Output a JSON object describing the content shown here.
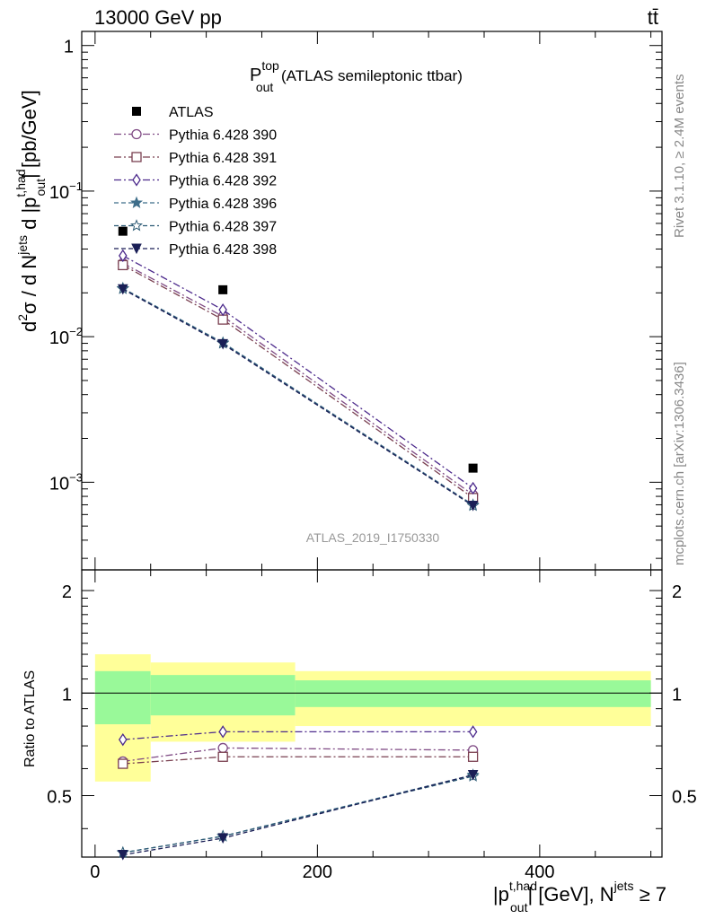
{
  "header": {
    "left": "13000 GeV pp",
    "right": "tt̄"
  },
  "side": {
    "rivet": "Rivet 3.1.10, ≥ 2.4M events",
    "mcplots": "mcplots.cern.ch [arXiv:1306.3436]"
  },
  "watermark": "ATLAS_2019_I1750330",
  "chart_data": {
    "type": "line",
    "title_main": "P",
    "title_sup": "top",
    "title_sub": "out",
    "title_rest": " (ATLAS semileptonic ttbar)",
    "ylabel_parts": {
      "d2": "d",
      "d2_sup": "2",
      "sigma": "σ / d N",
      "jets": "jets",
      "d": " d |p",
      "thad": "t,had",
      "out": "out",
      "unit": "| [pb/GeV]"
    },
    "xlabel_parts": {
      "p": "|p",
      "thad": "t,had",
      "out": "out",
      "mid": "| [GeV], N",
      "jets": "jets",
      "tail": " ≥ 7"
    },
    "ratio_ylabel": "Ratio to ATLAS",
    "log_yscale": true,
    "main_ylim": [
      0.00025,
      1.25
    ],
    "main_yticks": [
      {
        "v": 1,
        "base": "1",
        "exp": ""
      },
      {
        "v": 0.1,
        "base": "10",
        "exp": "−1"
      },
      {
        "v": 0.01,
        "base": "10",
        "exp": "−2"
      },
      {
        "v": 0.001,
        "base": "10",
        "exp": "−3"
      }
    ],
    "xlim": [
      -12,
      510
    ],
    "xticks": [
      0,
      200,
      400
    ],
    "xtick_labels": [
      "0",
      "200",
      "400"
    ],
    "ratio_ylim": [
      0.33,
      2.3
    ],
    "ratio_yticks": [
      0.5,
      1,
      2
    ],
    "ratio_ytick_labels": [
      "0.5",
      "1",
      "2"
    ],
    "bins": [
      [
        0,
        50
      ],
      [
        50,
        180
      ],
      [
        180,
        500
      ]
    ],
    "x": [
      25,
      115,
      340
    ],
    "atlas": {
      "name": "ATLAS",
      "values": [
        0.053,
        0.021,
        0.00125
      ]
    },
    "band_inner": [
      [
        0.81,
        1.16
      ],
      [
        0.86,
        1.13
      ],
      [
        0.91,
        1.09
      ]
    ],
    "band_outer": [
      [
        0.55,
        1.3
      ],
      [
        0.72,
        1.23
      ],
      [
        0.8,
        1.16
      ]
    ],
    "series": [
      {
        "name": "Pythia 6.428 390",
        "marker": "circle",
        "color": "#7f4a84",
        "dash": "8,3,2,3",
        "values": [
          0.032,
          0.0138,
          0.00082
        ],
        "ratio": [
          0.63,
          0.69,
          0.68
        ]
      },
      {
        "name": "Pythia 6.428 391",
        "marker": "square",
        "color": "#7a4050",
        "dash": "8,3,2,3",
        "values": [
          0.031,
          0.0131,
          0.00078
        ],
        "ratio": [
          0.62,
          0.65,
          0.65
        ]
      },
      {
        "name": "Pythia 6.428 392",
        "marker": "diamond",
        "color": "#4c2a8c",
        "dash": "8,3,2,3",
        "values": [
          0.036,
          0.0153,
          0.00091
        ],
        "ratio": [
          0.73,
          0.77,
          0.77
        ]
      },
      {
        "name": "Pythia 6.428 396",
        "marker": "star",
        "color": "#3f6e8a",
        "dash": "5,3",
        "values": [
          0.0215,
          0.0091,
          0.0007
        ],
        "ratio": [
          0.34,
          0.38,
          0.575
        ]
      },
      {
        "name": "Pythia 6.428 397",
        "marker": "star-open",
        "color": "#2c5a74",
        "dash": "5,3",
        "values": [
          0.0213,
          0.009,
          0.00069
        ],
        "ratio": [
          0.34,
          0.38,
          0.57
        ]
      },
      {
        "name": "Pythia 6.428 398",
        "marker": "triangle-down",
        "color": "#1a1f56",
        "dash": "5,3",
        "values": [
          0.0212,
          0.0089,
          0.00069
        ],
        "ratio": [
          0.335,
          0.375,
          0.575
        ]
      }
    ],
    "legend_placement": "top-left"
  }
}
